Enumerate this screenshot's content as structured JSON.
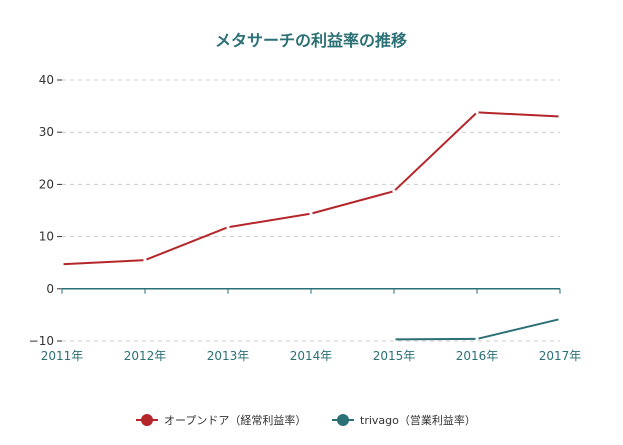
{
  "colors": {
    "title": "#2a7075",
    "axis_x": "#2a7075",
    "grid": "#cccccc",
    "tick_text": "#333333"
  },
  "chart_data": {
    "type": "line",
    "title": "メタサーチの利益率の推移",
    "xlabel": "",
    "ylabel": "",
    "categories": [
      "2011年",
      "2012年",
      "2013年",
      "2014年",
      "2015年",
      "2016年",
      "2017年"
    ],
    "ylim": [
      -10,
      40
    ],
    "yticks": [
      -10,
      0,
      10,
      20,
      30,
      40
    ],
    "grid": true,
    "legend_position": "bottom",
    "series": [
      {
        "name": "オープンドア（経常利益率）",
        "color": "#b5262b",
        "values": [
          4.7,
          5.5,
          11.8,
          14.4,
          18.7,
          33.8,
          33.0
        ]
      },
      {
        "name": "trivago（営業利益率）",
        "color": "#2a7075",
        "values": [
          null,
          null,
          null,
          null,
          -9.7,
          -9.6,
          -5.8
        ]
      }
    ]
  }
}
